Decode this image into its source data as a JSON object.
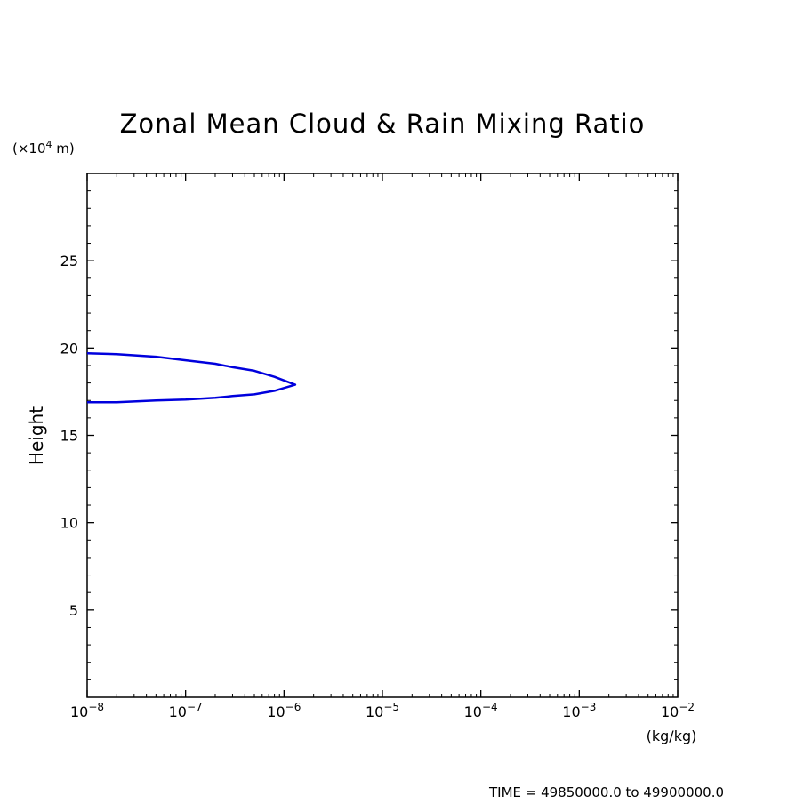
{
  "chart_data": {
    "type": "line",
    "title": "Zonal Mean Cloud & Rain Mixing Ratio",
    "xlabel": "(kg/kg)",
    "ylabel": "Height",
    "yunit_prefix": "(×10",
    "yunit_exp": "4",
    "yunit_suffix": " m)",
    "xscale": "log",
    "xlim": [
      1e-08,
      0.01
    ],
    "ylim": [
      0,
      30
    ],
    "x_ticks": [
      {
        "base": "10",
        "exp": "−8"
      },
      {
        "base": "10",
        "exp": "−7"
      },
      {
        "base": "10",
        "exp": "−6"
      },
      {
        "base": "10",
        "exp": "−5"
      },
      {
        "base": "10",
        "exp": "−4"
      },
      {
        "base": "10",
        "exp": "−3"
      },
      {
        "base": "10",
        "exp": "−2"
      }
    ],
    "y_ticks": [
      "5",
      "10",
      "15",
      "20",
      "25"
    ],
    "y_tick_values": [
      5,
      10,
      15,
      20,
      25
    ],
    "line_color": "#0000dd",
    "series": [
      {
        "x": [
          1e-08,
          2e-08,
          5e-08,
          1e-07,
          2e-07,
          3e-07,
          5e-07,
          8e-07,
          1.3e-06,
          8e-07,
          5e-07,
          3e-07,
          2e-07,
          1e-07,
          5e-08,
          2e-08,
          1e-08
        ],
        "y": [
          19.7,
          19.65,
          19.5,
          19.3,
          19.1,
          18.9,
          18.7,
          18.35,
          17.9,
          17.55,
          17.35,
          17.25,
          17.15,
          17.05,
          17.0,
          16.9,
          16.9
        ]
      }
    ],
    "grid": false
  },
  "footer": {
    "time_text": "TIME = 49850000.0 to 49900000.0"
  }
}
